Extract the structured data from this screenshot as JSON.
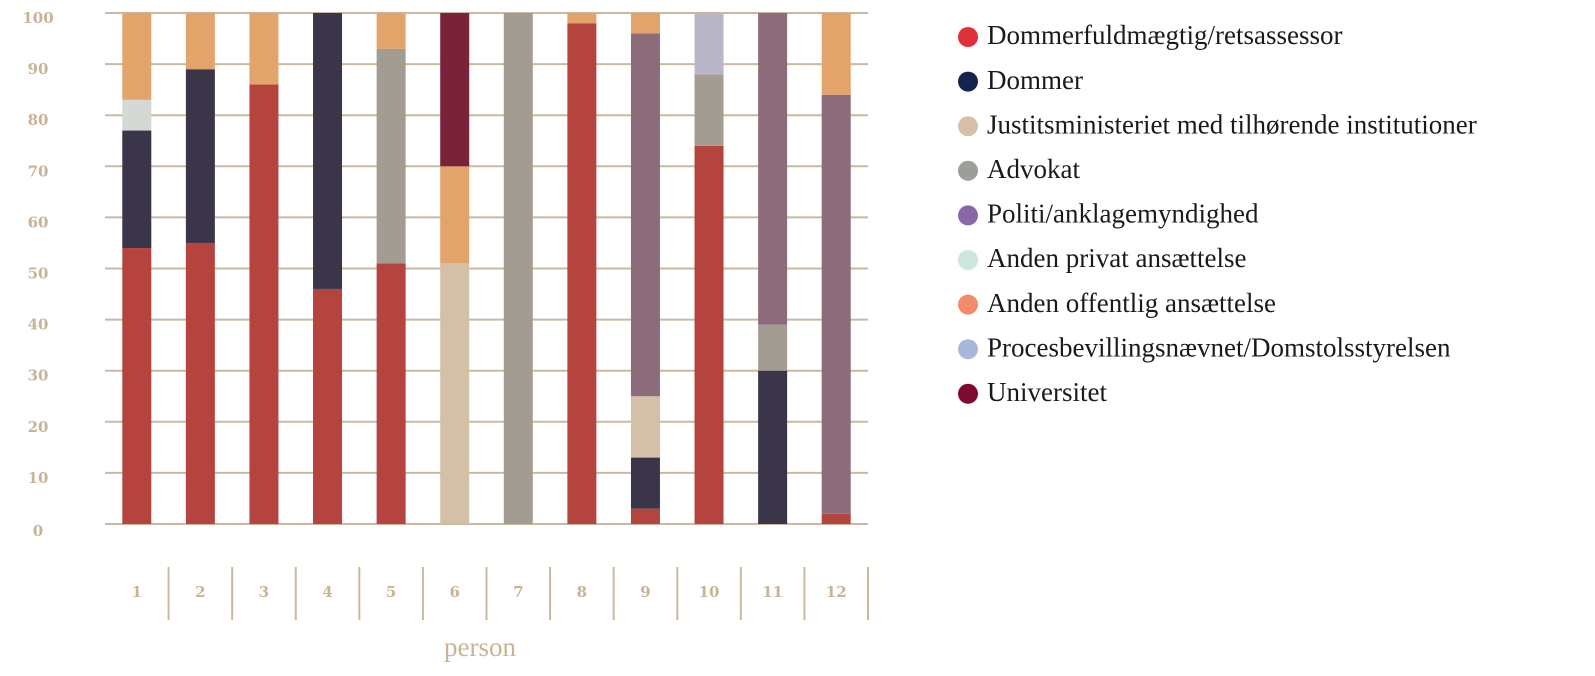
{
  "chart_data": {
    "type": "stacked_bar",
    "x_label": "person",
    "categories": [
      "1",
      "2",
      "3",
      "4",
      "5",
      "6",
      "7",
      "8",
      "9",
      "10",
      "11",
      "12"
    ],
    "series": [
      {
        "name": "Dommerfuldmægtig/retsassessor",
        "color": "#b5443e",
        "legend_color": "#e0303a",
        "values": [
          54,
          55,
          86,
          46,
          51,
          0,
          0,
          98,
          3,
          74,
          0,
          2
        ]
      },
      {
        "name": "Dommer",
        "color": "#3a3548",
        "legend_color": "#13234d",
        "values": [
          23,
          34,
          0,
          54,
          0,
          0,
          0,
          0,
          10,
          0,
          30,
          0
        ]
      },
      {
        "name": "Justitsministeriet med tilhørende institutioner",
        "color": "#d4c0a6",
        "legend_color": "#d8bfa6",
        "values": [
          0,
          0,
          0,
          0,
          0,
          51,
          0,
          0,
          12,
          0,
          0,
          0
        ]
      },
      {
        "name": "Advokat",
        "color": "#a39c92",
        "legend_color": "#98a098",
        "values": [
          0,
          0,
          0,
          0,
          42,
          0,
          100,
          0,
          0,
          14,
          9,
          0
        ]
      },
      {
        "name": "Politi/anklagemyndighed",
        "color": "#8c6b7b",
        "legend_color": "#8a67a8",
        "values": [
          0,
          0,
          0,
          0,
          0,
          0,
          0,
          0,
          71,
          0,
          61,
          82
        ]
      },
      {
        "name": "Anden privat ansættelse",
        "color": "#d5d9d6",
        "legend_color": "#cce6dd",
        "values": [
          6,
          0,
          0,
          0,
          0,
          0,
          0,
          0,
          0,
          0,
          0,
          0
        ]
      },
      {
        "name": "Anden offentlig ansættelse",
        "color": "#e3a46b",
        "legend_color": "#f38a6a",
        "values": [
          17,
          11,
          14,
          0,
          7,
          19,
          0,
          2,
          4,
          0,
          0,
          16
        ]
      },
      {
        "name": "Procesbevillingsnævnet/Domstolsstyrelsen",
        "color": "#b9b6c8",
        "legend_color": "#a8b8d8",
        "values": [
          0,
          0,
          0,
          0,
          0,
          0,
          0,
          0,
          0,
          12,
          0,
          0
        ]
      },
      {
        "name": "Universitet",
        "color": "#7a2238",
        "legend_color": "#7d0a30",
        "values": [
          0,
          0,
          0,
          0,
          0,
          30,
          0,
          0,
          0,
          0,
          0,
          0
        ]
      }
    ],
    "ylim": [
      0,
      100
    ],
    "yticks": [
      0,
      10,
      20,
      30,
      40,
      50,
      60,
      70,
      80,
      90,
      100
    ],
    "grid": true,
    "legend": "right"
  }
}
